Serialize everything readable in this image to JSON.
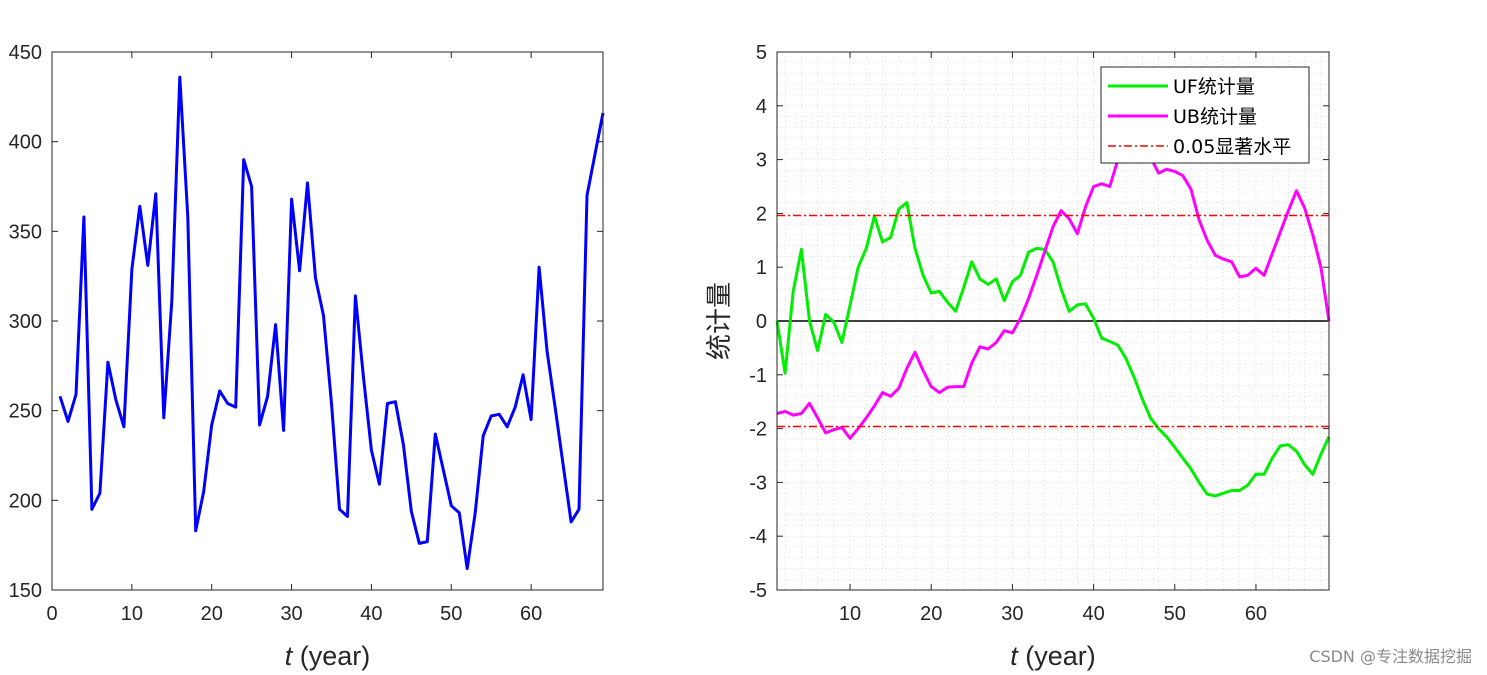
{
  "watermark": "CSDN @专注数据挖掘",
  "chart_data": [
    {
      "type": "line",
      "title": "",
      "xlabel_italic": "t",
      "xlabel_rest": " (year)",
      "ylabel": "",
      "xlim": [
        0,
        69
      ],
      "ylim": [
        150,
        450
      ],
      "xticks": [
        0,
        10,
        20,
        30,
        40,
        50,
        60
      ],
      "yticks": [
        150,
        200,
        250,
        300,
        350,
        400,
        450
      ],
      "grid": false,
      "series": [
        {
          "color": "#0000ff",
          "x": [
            1,
            2,
            3,
            4,
            5,
            6,
            7,
            8,
            9,
            10,
            11,
            12,
            13,
            14,
            15,
            16,
            17,
            18,
            19,
            20,
            21,
            22,
            23,
            24,
            25,
            26,
            27,
            28,
            29,
            30,
            31,
            32,
            33,
            34,
            35,
            36,
            37,
            38,
            39,
            40,
            41,
            42,
            43,
            44,
            45,
            46,
            47,
            48,
            49,
            50,
            51,
            52,
            53,
            54,
            55,
            56,
            57,
            58,
            59,
            60,
            61,
            62,
            63,
            64,
            65,
            66,
            67,
            68,
            69
          ],
          "values": [
            258,
            244,
            259,
            358,
            195,
            204,
            277,
            256,
            241,
            329,
            364,
            331,
            371,
            246,
            311,
            436,
            358,
            183,
            205,
            242,
            261,
            254,
            252,
            390,
            375,
            242,
            258,
            298,
            239,
            368,
            328,
            377,
            324,
            303,
            254,
            195,
            191,
            314,
            269,
            228,
            209,
            254,
            255,
            231,
            194,
            176,
            177,
            237,
            217,
            197,
            193,
            162,
            193,
            236,
            247,
            248,
            241,
            252,
            270,
            245,
            330,
            283,
            252,
            220,
            188,
            195,
            370,
            393,
            416
          ]
        }
      ]
    },
    {
      "type": "line",
      "title": "",
      "xlabel_italic": "t",
      "xlabel_rest": " (year)",
      "ylabel": "统计量",
      "xlim": [
        1,
        69
      ],
      "ylim": [
        -5,
        5
      ],
      "xticks": [
        10,
        20,
        30,
        40,
        50,
        60
      ],
      "yticks": [
        -5,
        -4,
        -3,
        -2,
        -1,
        0,
        1,
        2,
        3,
        4,
        5
      ],
      "grid": true,
      "legend_placement": "top-right",
      "series": [
        {
          "name": "UF统计量",
          "color": "#00ee00",
          "x": [
            1,
            2,
            3,
            4,
            5,
            6,
            7,
            8,
            9,
            10,
            11,
            12,
            13,
            14,
            15,
            16,
            17,
            18,
            19,
            20,
            21,
            22,
            23,
            24,
            25,
            26,
            27,
            28,
            29,
            30,
            31,
            32,
            33,
            34,
            35,
            36,
            37,
            38,
            39,
            40,
            41,
            42,
            43,
            44,
            45,
            46,
            47,
            48,
            49,
            50,
            51,
            52,
            53,
            54,
            55,
            56,
            57,
            58,
            59,
            60,
            61,
            62,
            63,
            64,
            65,
            66,
            67,
            68,
            69
          ],
          "values": [
            0,
            -0.97,
            0.55,
            1.33,
            0,
            -0.55,
            0.12,
            -0.02,
            -0.4,
            0.3,
            1.0,
            1.35,
            1.95,
            1.47,
            1.55,
            2.08,
            2.2,
            1.35,
            0.85,
            0.52,
            0.55,
            0.35,
            0.18,
            0.62,
            1.1,
            0.78,
            0.68,
            0.78,
            0.38,
            0.73,
            0.85,
            1.28,
            1.35,
            1.33,
            1.1,
            0.6,
            0.18,
            0.3,
            0.32,
            0.05,
            -0.32,
            -0.38,
            -0.45,
            -0.7,
            -1.05,
            -1.45,
            -1.8,
            -2.0,
            -2.15,
            -2.35,
            -2.55,
            -2.75,
            -3.0,
            -3.22,
            -3.25,
            -3.2,
            -3.15,
            -3.15,
            -3.05,
            -2.85,
            -2.85,
            -2.55,
            -2.32,
            -2.3,
            -2.42,
            -2.67,
            -2.85,
            -2.48,
            -2.15
          ]
        },
        {
          "name": "UB统计量",
          "color": "#ff00ff",
          "x": [
            1,
            2,
            3,
            4,
            5,
            6,
            7,
            8,
            9,
            10,
            11,
            12,
            13,
            14,
            15,
            16,
            17,
            18,
            19,
            20,
            21,
            22,
            23,
            24,
            25,
            26,
            27,
            28,
            29,
            30,
            31,
            32,
            33,
            34,
            35,
            36,
            37,
            38,
            39,
            40,
            41,
            42,
            43,
            44,
            45,
            46,
            47,
            48,
            49,
            50,
            51,
            52,
            53,
            54,
            55,
            56,
            57,
            58,
            59,
            60,
            61,
            62,
            63,
            64,
            65,
            66,
            67,
            68,
            69
          ],
          "values": [
            -1.72,
            -1.68,
            -1.75,
            -1.72,
            -1.53,
            -1.8,
            -2.08,
            -2.02,
            -1.98,
            -2.18,
            -2.0,
            -1.8,
            -1.58,
            -1.33,
            -1.4,
            -1.25,
            -0.88,
            -0.58,
            -0.92,
            -1.22,
            -1.33,
            -1.23,
            -1.22,
            -1.22,
            -0.78,
            -0.48,
            -0.52,
            -0.4,
            -0.18,
            -0.22,
            0.05,
            0.42,
            0.85,
            1.3,
            1.75,
            2.05,
            1.9,
            1.62,
            2.12,
            2.5,
            2.55,
            2.5,
            3.0,
            3.4,
            3.42,
            3.35,
            3.05,
            2.75,
            2.82,
            2.78,
            2.7,
            2.45,
            1.88,
            1.5,
            1.22,
            1.15,
            1.1,
            0.82,
            0.85,
            0.98,
            0.85,
            1.25,
            1.65,
            2.05,
            2.42,
            2.1,
            1.6,
            1.0,
            0
          ]
        },
        {
          "name": "0.05显著水平",
          "color": "#ff0000",
          "style": "dash-dot",
          "levels": [
            1.96,
            -1.96
          ]
        }
      ]
    }
  ]
}
